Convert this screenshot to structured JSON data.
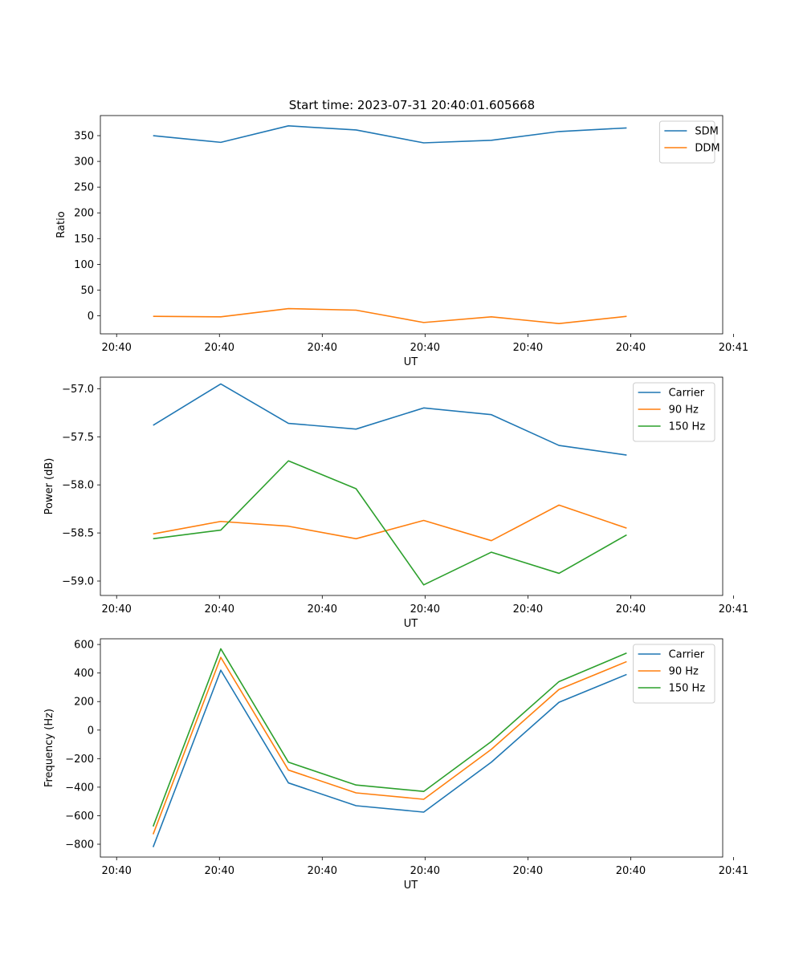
{
  "figure": {
    "title": "Start time: 2023-07-31 20:40:01.605668"
  },
  "colors": {
    "blue": "#1f77b4",
    "orange": "#ff7f0e",
    "green": "#2ca02c"
  },
  "chart_data": [
    {
      "type": "line",
      "title": "Start time: 2023-07-31 20:40:01.605668",
      "xlabel": "UT",
      "ylabel": "Ratio",
      "x": [
        1,
        2,
        3,
        4,
        5,
        6,
        7,
        8
      ],
      "xlim": [
        0.22,
        9.42
      ],
      "xticks": [
        0.46,
        1.98,
        3.5,
        5.02,
        6.54,
        8.06,
        9.58
      ],
      "xtick_labels": [
        "20:40",
        "20:40",
        "20:40",
        "20:40",
        "20:40",
        "20:40",
        "20:41"
      ],
      "ylim": [
        -35,
        389
      ],
      "yticks": [
        0,
        50,
        100,
        150,
        200,
        250,
        300,
        350
      ],
      "ytick_labels": [
        "0",
        "50",
        "100",
        "150",
        "200",
        "250",
        "300",
        "350"
      ],
      "legend": "top-right",
      "series": [
        {
          "name": "SDM",
          "color": "#1f77b4",
          "values": [
            350,
            337,
            369,
            361,
            336,
            341,
            358,
            365
          ]
        },
        {
          "name": "DDM",
          "color": "#ff7f0e",
          "values": [
            -1,
            -2,
            14,
            11,
            -13,
            -2,
            -15,
            -1
          ]
        }
      ]
    },
    {
      "type": "line",
      "title": "",
      "xlabel": "UT",
      "ylabel": "Power (dB)",
      "x": [
        1,
        2,
        3,
        4,
        5,
        6,
        7,
        8
      ],
      "xlim": [
        0.22,
        9.42
      ],
      "xticks": [
        0.46,
        1.98,
        3.5,
        5.02,
        6.54,
        8.06,
        9.58
      ],
      "xtick_labels": [
        "20:40",
        "20:40",
        "20:40",
        "20:40",
        "20:40",
        "20:40",
        "20:41"
      ],
      "ylim": [
        -59.15,
        -56.88
      ],
      "yticks": [
        -59.0,
        -58.5,
        -58.0,
        -57.5,
        -57.0
      ],
      "ytick_labels": [
        "−59.0",
        "−58.5",
        "−58.0",
        "−57.5",
        "−57.0"
      ],
      "legend": "top-right",
      "series": [
        {
          "name": "Carrier",
          "color": "#1f77b4",
          "values": [
            -57.38,
            -56.95,
            -57.36,
            -57.42,
            -57.2,
            -57.27,
            -57.59,
            -57.69
          ]
        },
        {
          "name": "90 Hz",
          "color": "#ff7f0e",
          "values": [
            -58.51,
            -58.38,
            -58.43,
            -58.56,
            -58.37,
            -58.58,
            -58.21,
            -58.45
          ]
        },
        {
          "name": "150 Hz",
          "color": "#2ca02c",
          "values": [
            -58.56,
            -58.47,
            -57.75,
            -58.04,
            -59.04,
            -58.7,
            -58.92,
            -58.52
          ]
        }
      ]
    },
    {
      "type": "line",
      "title": "",
      "xlabel": "UT",
      "ylabel": "Frequency (Hz)",
      "x": [
        1,
        2,
        3,
        4,
        5,
        6,
        7,
        8
      ],
      "xlim": [
        0.22,
        9.42
      ],
      "xticks": [
        0.46,
        1.98,
        3.5,
        5.02,
        6.54,
        8.06,
        9.58
      ],
      "xtick_labels": [
        "20:40",
        "20:40",
        "20:40",
        "20:40",
        "20:40",
        "20:40",
        "20:41"
      ],
      "ylim": [
        -890,
        640
      ],
      "yticks": [
        -800,
        -600,
        -400,
        -200,
        0,
        200,
        400,
        600
      ],
      "ytick_labels": [
        "−800",
        "−600",
        "−400",
        "−200",
        "0",
        "200",
        "400",
        "600"
      ],
      "legend": "top-right",
      "series": [
        {
          "name": "Carrier",
          "color": "#1f77b4",
          "values": [
            -820,
            420,
            -370,
            -530,
            -575,
            -225,
            195,
            390
          ]
        },
        {
          "name": "90 Hz",
          "color": "#ff7f0e",
          "values": [
            -730,
            510,
            -280,
            -440,
            -485,
            -135,
            285,
            480
          ]
        },
        {
          "name": "150 Hz",
          "color": "#2ca02c",
          "values": [
            -675,
            570,
            -225,
            -385,
            -430,
            -80,
            340,
            540
          ]
        }
      ]
    }
  ]
}
